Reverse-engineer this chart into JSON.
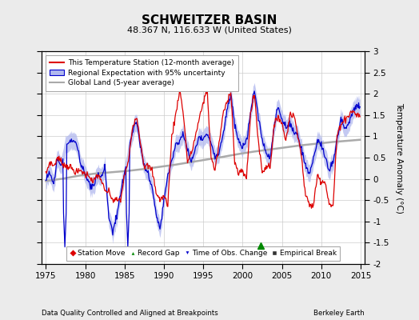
{
  "title": "SCHWEITZER BASIN",
  "subtitle": "48.367 N, 116.633 W (United States)",
  "ylabel": "Temperature Anomaly (°C)",
  "xlabel_bottom_left": "Data Quality Controlled and Aligned at Breakpoints",
  "xlabel_bottom_right": "Berkeley Earth",
  "xlim": [
    1974.5,
    2015.5
  ],
  "ylim": [
    -2.0,
    3.0
  ],
  "yticks": [
    -2,
    -1.5,
    -1,
    -0.5,
    0,
    0.5,
    1,
    1.5,
    2,
    2.5,
    3
  ],
  "xticks": [
    1975,
    1980,
    1985,
    1990,
    1995,
    2000,
    2005,
    2010,
    2015
  ],
  "background_color": "#ebebeb",
  "plot_bg_color": "#ffffff",
  "red_line_color": "#dd0000",
  "blue_line_color": "#0000cc",
  "blue_fill_color": "#b0b8ee",
  "gray_line_color": "#aaaaaa",
  "record_gap_x": 2002.3,
  "record_gap_y": -1.57,
  "blue_downward_x1": 1977.5,
  "blue_downward_y1": -1.57,
  "blue_downward_x2": 1985.5,
  "blue_downward_y2": -1.57
}
